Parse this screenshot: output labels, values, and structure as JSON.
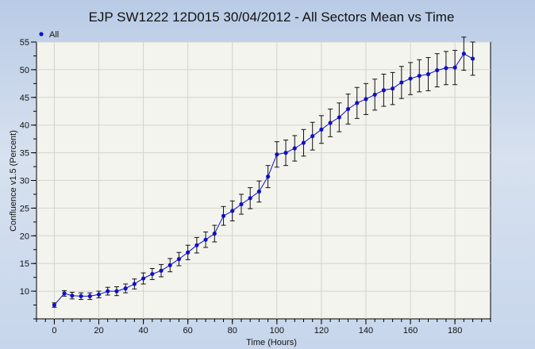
{
  "chart_data": {
    "type": "line",
    "title": "EJP SW1222 12D015 30/04/2012 - All Sectors Mean vs Time",
    "xlabel": "Time (Hours)",
    "ylabel": "Confluence v1.5 (Percent)",
    "xlim": [
      -8,
      196
    ],
    "ylim": [
      5,
      55
    ],
    "xticks": [
      0,
      20,
      40,
      60,
      80,
      100,
      120,
      140,
      160,
      180
    ],
    "yticks": [
      10,
      15,
      20,
      25,
      30,
      35,
      40,
      45,
      50,
      55
    ],
    "x_minor_step": 4,
    "y_minor_step": 2.5,
    "grid": true,
    "legend_position": "top-left",
    "series_color": "#1010c8",
    "series": [
      {
        "name": "All",
        "x": [
          0,
          4.5,
          8,
          12,
          16,
          20,
          24,
          28,
          32,
          36,
          40,
          44,
          48,
          52,
          56,
          60,
          64,
          68,
          72,
          76,
          80,
          84,
          88,
          92,
          96,
          100,
          104,
          108,
          112,
          116,
          120,
          124,
          128,
          132,
          136,
          140,
          144,
          148,
          152,
          156,
          160,
          164,
          168,
          172,
          176,
          180,
          184,
          188
        ],
        "y": [
          7.5,
          9.6,
          9.2,
          9.1,
          9.1,
          9.4,
          10.0,
          10.0,
          10.5,
          11.3,
          12.3,
          13.1,
          13.7,
          14.7,
          15.8,
          17.0,
          18.3,
          19.3,
          20.4,
          23.6,
          24.5,
          25.7,
          26.8,
          28.0,
          30.7,
          34.7,
          35.0,
          35.8,
          36.8,
          38.0,
          39.2,
          40.4,
          41.4,
          42.9,
          44.0,
          44.7,
          45.5,
          46.3,
          46.6,
          47.7,
          48.4,
          48.9,
          49.2,
          49.9,
          50.3,
          50.4,
          52.9,
          52.0
        ],
        "error": [
          0.4,
          0.5,
          0.6,
          0.6,
          0.6,
          0.6,
          0.7,
          0.8,
          0.8,
          0.9,
          1.0,
          1.0,
          1.1,
          1.2,
          1.2,
          1.3,
          1.4,
          1.4,
          1.5,
          1.7,
          1.8,
          1.8,
          1.9,
          1.9,
          2.0,
          2.3,
          2.3,
          2.3,
          2.4,
          2.5,
          2.5,
          2.5,
          2.6,
          2.7,
          2.8,
          2.8,
          2.8,
          2.9,
          2.9,
          2.9,
          2.9,
          2.9,
          3.0,
          3.0,
          3.0,
          3.1,
          3.0,
          3.0
        ]
      }
    ]
  }
}
